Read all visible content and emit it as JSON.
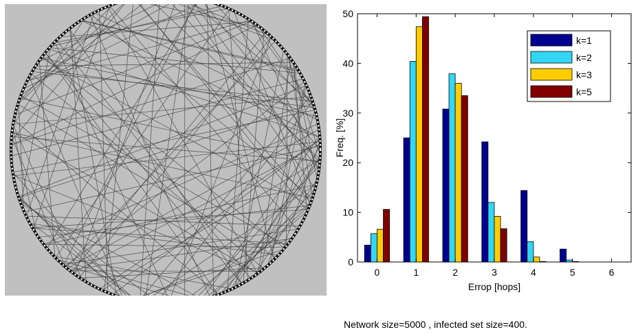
{
  "caption": "Network size=5000 ,  infected set size=400.",
  "graph_panel": {
    "background_color": "#c0c0c0",
    "edge_color": "#3a3a3a",
    "ring_color": "#111111"
  },
  "chart_data": {
    "type": "bar",
    "categories": [
      "0",
      "1",
      "2",
      "3",
      "4",
      "5",
      "6"
    ],
    "x": [
      0,
      1,
      2,
      3,
      4,
      5,
      6
    ],
    "xlabel": "Errop [hops]",
    "ylabel": "Freq. [%]",
    "xlim": [
      -0.5,
      6.5
    ],
    "ylim": [
      0,
      50
    ],
    "yticks": [
      0,
      10,
      20,
      30,
      40,
      50
    ],
    "legend_position": "top-right",
    "series": [
      {
        "name": "k=1",
        "color": "#00008f",
        "values": [
          3.4,
          25,
          30.8,
          24.2,
          14.4,
          2.6,
          0
        ]
      },
      {
        "name": "k=2",
        "color": "#33d6f5",
        "values": [
          5.7,
          40.4,
          37.9,
          12,
          4.1,
          0.4,
          0
        ]
      },
      {
        "name": "k=3",
        "color": "#ffcc00",
        "values": [
          6.6,
          47.4,
          36,
          9.2,
          1,
          0.1,
          0
        ]
      },
      {
        "name": "k=5",
        "color": "#800000",
        "values": [
          10.6,
          49.4,
          33.5,
          6.7,
          0.1,
          0,
          0
        ]
      }
    ]
  }
}
